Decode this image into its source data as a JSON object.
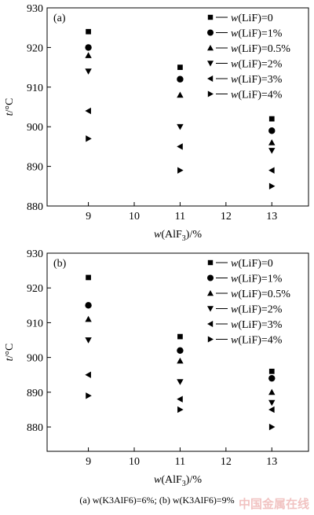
{
  "chart_data": [
    {
      "type": "scatter",
      "panel_label": "(a)",
      "ylabel": "t/°C",
      "xlabel": "w(AlF3)/%",
      "x_ticks": [
        9,
        10,
        11,
        12,
        13
      ],
      "y_ticks": [
        880,
        890,
        900,
        910,
        920,
        930
      ],
      "xlim": [
        8.1,
        13.8
      ],
      "ylim": [
        880,
        930
      ],
      "series": [
        {
          "name": "w(LiF)=0",
          "marker": "square",
          "x": [
            9,
            11,
            13
          ],
          "y": [
            924,
            915,
            902
          ]
        },
        {
          "name": "w(LiF)=1%",
          "marker": "circle",
          "x": [
            9,
            11,
            13
          ],
          "y": [
            920,
            912,
            899
          ]
        },
        {
          "name": "w(LiF)=0.5%",
          "marker": "triangle-up",
          "x": [
            9,
            11,
            13
          ],
          "y": [
            918,
            908,
            896
          ]
        },
        {
          "name": "w(LiF)=2%",
          "marker": "triangle-down",
          "x": [
            9,
            11,
            13
          ],
          "y": [
            914,
            900,
            894
          ]
        },
        {
          "name": "w(LiF)=3%",
          "marker": "triangle-left",
          "x": [
            9,
            11,
            13
          ],
          "y": [
            904,
            895,
            889
          ]
        },
        {
          "name": "w(LiF)=4%",
          "marker": "triangle-right",
          "x": [
            9,
            11,
            13
          ],
          "y": [
            897,
            889,
            885
          ]
        }
      ]
    },
    {
      "type": "scatter",
      "panel_label": "(b)",
      "ylabel": "t/°C",
      "xlabel": "w(AlF3)/%",
      "x_ticks": [
        9,
        10,
        11,
        12,
        13
      ],
      "y_ticks": [
        880,
        890,
        900,
        910,
        920,
        930
      ],
      "xlim": [
        8.1,
        13.8
      ],
      "ylim": [
        873,
        930
      ],
      "series": [
        {
          "name": "w(LiF)=0",
          "marker": "square",
          "x": [
            9,
            11,
            13
          ],
          "y": [
            923,
            906,
            896
          ]
        },
        {
          "name": "w(LiF)=1%",
          "marker": "circle",
          "x": [
            9,
            11,
            13
          ],
          "y": [
            915,
            902,
            894
          ]
        },
        {
          "name": "w(LiF)=0.5%",
          "marker": "triangle-up",
          "x": [
            9,
            11,
            13
          ],
          "y": [
            911,
            899,
            890
          ]
        },
        {
          "name": "w(LiF)=2%",
          "marker": "triangle-down",
          "x": [
            9,
            11,
            13
          ],
          "y": [
            905,
            893,
            887
          ]
        },
        {
          "name": "w(LiF)=3%",
          "marker": "triangle-left",
          "x": [
            9,
            11,
            13
          ],
          "y": [
            895,
            888,
            885
          ]
        },
        {
          "name": "w(LiF)=4%",
          "marker": "triangle-right",
          "x": [
            9,
            11,
            13
          ],
          "y": [
            889,
            885,
            880
          ]
        }
      ]
    }
  ],
  "caption": "(a)  w(K3AlF6)=6%;  (b)  w(K3AlF6)=9%",
  "watermark": "中国金属在线"
}
